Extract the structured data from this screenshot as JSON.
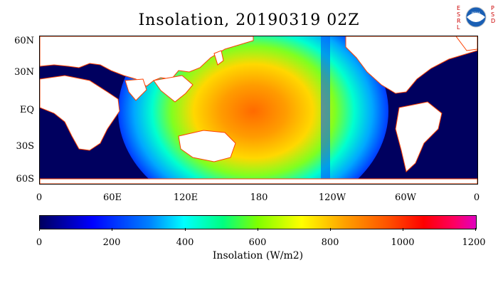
{
  "title": "Insolation, 20190319 02Z",
  "logo": {
    "left_letters": "ESRL",
    "right_letters": "PSD",
    "badge_text": "NOAA",
    "icon": "noaa-logo"
  },
  "map": {
    "lat_labels": [
      "60N",
      "30N",
      "EQ",
      "30S",
      "60S"
    ],
    "lon_labels": [
      "0",
      "60E",
      "120E",
      "180",
      "120W",
      "60W",
      "0"
    ],
    "colors": {
      "ocean_dark": "#00005f",
      "land": "#ffffff",
      "land_edge": "#ff4000"
    }
  },
  "colorbar": {
    "ticks": [
      "0",
      "200",
      "400",
      "600",
      "800",
      "1000",
      "1200"
    ],
    "label": "Insolation (W/m2)"
  }
}
